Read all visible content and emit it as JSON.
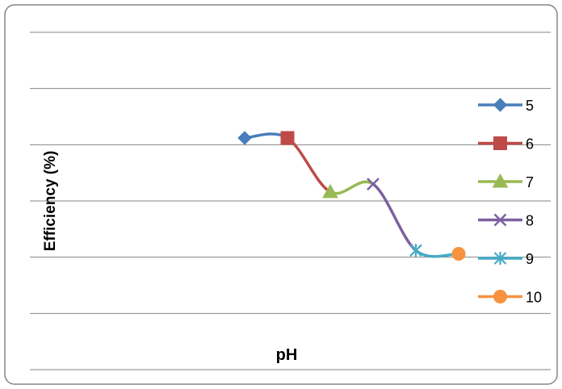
{
  "chart_data": {
    "type": "line",
    "title": "",
    "xlabel": "pH",
    "ylabel": "Efficiency (%)",
    "grid": true,
    "smooth": true,
    "legend_position": "right",
    "series": [
      {
        "name": "5",
        "color": "#4A7EBB",
        "marker": "diamond",
        "points": [
          [
            1,
            4.12
          ],
          [
            2,
            4.12
          ]
        ]
      },
      {
        "name": "6",
        "color": "#BE4B48",
        "marker": "square",
        "points": [
          [
            2,
            4.12
          ],
          [
            3,
            3.16
          ]
        ]
      },
      {
        "name": "7",
        "color": "#98B954",
        "marker": "triangle",
        "points": [
          [
            3,
            3.16
          ],
          [
            4,
            3.3
          ]
        ]
      },
      {
        "name": "8",
        "color": "#7D60A0",
        "marker": "x",
        "points": [
          [
            4,
            3.3
          ],
          [
            5,
            2.12
          ]
        ]
      },
      {
        "name": "9",
        "color": "#46AAC5",
        "marker": "star",
        "points": [
          [
            5,
            2.12
          ],
          [
            6,
            2.06
          ]
        ]
      },
      {
        "name": "10",
        "color": "#F69240",
        "marker": "circle",
        "points": [
          [
            6,
            2.06
          ]
        ]
      }
    ]
  }
}
